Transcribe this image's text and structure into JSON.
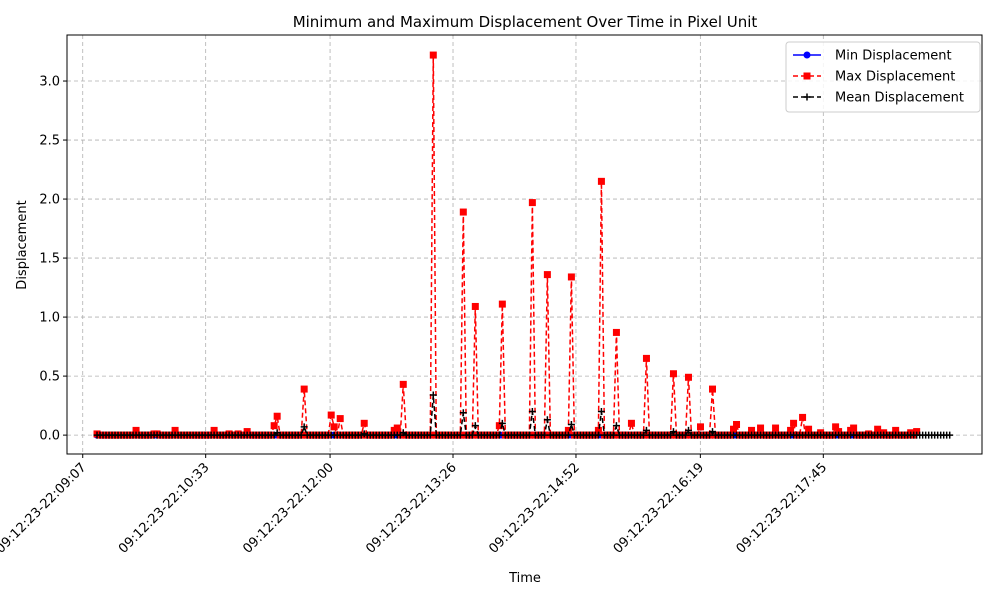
{
  "chart_data": {
    "type": "line",
    "title": "Minimum and Maximum Displacement Over Time in Pixel Unit",
    "xlabel": "Time",
    "ylabel": "Displacement",
    "xlim": [
      -11,
      629
    ],
    "ylim": [
      -0.16,
      3.39
    ],
    "x_ticks": [
      {
        "value": 0,
        "label": "09:12:23-22:09:07"
      },
      {
        "value": 86,
        "label": "09:12:23-22:10:33"
      },
      {
        "value": 173,
        "label": "09:12:23-22:12:00"
      },
      {
        "value": 259,
        "label": "09:12:23-22:13:26"
      },
      {
        "value": 345,
        "label": "09:12:23-22:14:52"
      },
      {
        "value": 432,
        "label": "09:12:23-22:16:19"
      },
      {
        "value": 518,
        "label": "09:12:23-22:17:45"
      }
    ],
    "y_ticks": [
      0.0,
      0.5,
      1.0,
      1.5,
      2.0,
      2.5,
      3.0
    ],
    "y_tick_labels": [
      "0.0",
      "0.5",
      "1.0",
      "1.5",
      "2.0",
      "2.5",
      "3.0"
    ],
    "grid": true,
    "legend_position": "top-right",
    "x_start": 10,
    "x_step": 2.1,
    "series": [
      {
        "name": "Min Displacement",
        "color": "#0000ff",
        "style": "solid",
        "marker": "circle",
        "values": [
          0,
          0,
          0,
          0,
          0,
          0,
          0,
          0,
          0,
          0,
          0,
          0,
          0,
          0,
          0,
          0,
          0,
          0,
          0,
          0,
          0,
          0,
          0,
          0,
          0,
          0,
          0,
          0,
          0,
          0,
          0,
          0,
          0,
          0,
          0,
          0,
          0,
          0,
          0,
          0,
          0,
          0,
          0,
          0,
          0,
          0,
          0,
          0,
          0,
          0,
          0,
          0,
          0,
          0,
          0,
          0,
          0,
          0,
          0,
          0,
          0,
          0,
          0,
          0,
          0,
          0,
          0,
          0,
          0,
          0,
          0,
          0,
          0,
          0,
          0,
          0,
          0,
          0,
          0,
          0,
          0,
          0,
          0,
          0,
          0,
          0,
          0,
          0,
          0,
          0,
          0,
          0,
          0,
          0,
          0,
          0,
          0,
          0,
          0,
          0,
          0,
          0,
          0,
          0,
          0,
          0,
          0,
          0,
          0,
          0,
          0,
          0,
          0,
          0,
          0,
          0,
          0,
          0,
          0,
          0,
          0,
          0,
          0,
          0,
          0,
          0,
          0,
          0,
          0,
          0,
          0,
          0,
          0,
          0,
          0,
          0,
          0,
          0,
          0,
          0,
          0,
          0,
          0,
          0,
          0,
          0,
          0,
          0,
          0,
          0,
          0,
          0,
          0,
          0,
          0,
          0,
          0,
          0,
          0,
          0,
          0,
          0,
          0,
          0,
          0,
          0,
          0,
          0,
          0,
          0,
          0,
          0,
          0,
          0,
          0,
          0,
          0,
          0,
          0,
          0,
          0,
          0,
          0,
          0,
          0,
          0,
          0,
          0,
          0,
          0,
          0,
          0,
          0,
          0,
          0,
          0,
          0,
          0,
          0,
          0,
          0,
          0,
          0,
          0,
          0,
          0,
          0,
          0,
          0,
          0,
          0,
          0,
          0,
          0,
          0,
          0,
          0,
          0,
          0,
          0,
          0,
          0,
          0,
          0,
          0,
          0,
          0,
          0,
          0,
          0,
          0,
          0,
          0,
          0,
          0,
          0,
          0,
          0,
          0,
          0,
          0,
          0,
          0,
          0,
          0,
          0,
          0,
          0,
          0,
          0,
          0,
          0,
          0,
          0,
          0,
          0,
          0,
          0,
          0,
          0,
          0,
          0,
          0,
          0,
          0
        ]
      },
      {
        "name": "Max Displacement",
        "color": "#ff0000",
        "style": "dashed",
        "marker": "square",
        "values": [
          0.01,
          0,
          0,
          0,
          0,
          0,
          0,
          0,
          0,
          0,
          0,
          0,
          0,
          0.04,
          0,
          0,
          0,
          0,
          0,
          0.01,
          0.01,
          0,
          0,
          0,
          0,
          0,
          0.04,
          0,
          0,
          0,
          0,
          0,
          0,
          0,
          0,
          0,
          0,
          0,
          0,
          0.04,
          0,
          0,
          0,
          0,
          0.01,
          0,
          0,
          0.01,
          0,
          0,
          0.03,
          0,
          0,
          0,
          0,
          0,
          0,
          0,
          0,
          0.08,
          0.16,
          0,
          0,
          0,
          0,
          0,
          0,
          0,
          0,
          0.39,
          0,
          0,
          0,
          0,
          0,
          0,
          0,
          0,
          0.17,
          0.07,
          0,
          0.14,
          0,
          0,
          0,
          0,
          0,
          0,
          0,
          0.1,
          0,
          0,
          0,
          0,
          0,
          0,
          0,
          0,
          0,
          0.04,
          0.06,
          0,
          0.43,
          0,
          0,
          0,
          0,
          0,
          0,
          0,
          0,
          0,
          3.22,
          0,
          0,
          0,
          0,
          0,
          0,
          0,
          0,
          0,
          1.89,
          0,
          0,
          0,
          1.09,
          0,
          0,
          0,
          0,
          0,
          0,
          0,
          0.08,
          1.11,
          0,
          0,
          0,
          0,
          0,
          0,
          0,
          0,
          0,
          1.97,
          0,
          0,
          0,
          0,
          1.36,
          0,
          0,
          0,
          0,
          0,
          0,
          0.04,
          1.34,
          0,
          0,
          0,
          0,
          0,
          0,
          0,
          0,
          0.04,
          2.15,
          0,
          0,
          0,
          0,
          0.87,
          0,
          0,
          0,
          0,
          0.1,
          0,
          0,
          0,
          0,
          0.65,
          0,
          0,
          0,
          0,
          0,
          0,
          0,
          0,
          0.52,
          0,
          0,
          0,
          0,
          0.49,
          0,
          0,
          0,
          0.07,
          0,
          0,
          0,
          0.39,
          0,
          0,
          0,
          0,
          0,
          0,
          0.05,
          0.09,
          0,
          0,
          0,
          0,
          0.04,
          0,
          0,
          0.06,
          0,
          0,
          0,
          0,
          0.06,
          0,
          0,
          0,
          0,
          0.04,
          0.1,
          0,
          0,
          0.15,
          0,
          0.05,
          0,
          0,
          0,
          0.02,
          0,
          0,
          0,
          0,
          0.07,
          0.03,
          0,
          0,
          0,
          0.04,
          0.06,
          0,
          0,
          0,
          0,
          0.01,
          0,
          0,
          0.05,
          0,
          0.02,
          0,
          0,
          0,
          0.04,
          0,
          0,
          0,
          0,
          0.02,
          0,
          0.03
        ]
      },
      {
        "name": "Mean Displacement",
        "color": "#000000",
        "style": "dashed",
        "marker": "plus",
        "values": [
          0,
          0,
          0,
          0,
          0,
          0,
          0,
          0,
          0,
          0,
          0,
          0,
          0,
          0,
          0,
          0,
          0,
          0,
          0,
          0,
          0,
          0,
          0,
          0,
          0,
          0,
          0,
          0,
          0,
          0,
          0,
          0,
          0,
          0,
          0,
          0,
          0,
          0,
          0,
          0,
          0,
          0,
          0,
          0,
          0,
          0,
          0,
          0,
          0,
          0,
          0,
          0,
          0,
          0,
          0,
          0,
          0,
          0,
          0,
          0,
          0.02,
          0,
          0,
          0,
          0,
          0,
          0,
          0,
          0,
          0.07,
          0,
          0,
          0,
          0,
          0,
          0,
          0,
          0,
          0,
          0,
          0,
          0,
          0,
          0,
          0,
          0,
          0,
          0,
          0,
          0.01,
          0,
          0,
          0,
          0,
          0,
          0,
          0,
          0,
          0,
          0,
          0,
          0,
          0.02,
          0,
          0,
          0,
          0,
          0,
          0,
          0,
          0,
          0,
          0.34,
          0,
          0,
          0,
          0,
          0,
          0,
          0,
          0,
          0,
          0.19,
          0,
          0,
          0,
          0.08,
          0,
          0,
          0,
          0,
          0,
          0,
          0,
          0,
          0.1,
          0,
          0,
          0,
          0,
          0,
          0,
          0,
          0,
          0,
          0.2,
          0,
          0,
          0,
          0,
          0.13,
          0,
          0,
          0,
          0,
          0,
          0,
          0,
          0.09,
          0,
          0,
          0,
          0,
          0,
          0,
          0,
          0,
          0,
          0.2,
          0,
          0,
          0,
          0,
          0.08,
          0,
          0,
          0,
          0,
          0,
          0,
          0,
          0,
          0,
          0.04,
          0,
          0,
          0,
          0,
          0,
          0,
          0,
          0,
          0.03,
          0,
          0,
          0,
          0,
          0.04,
          0,
          0,
          0,
          0,
          0,
          0,
          0,
          0.03,
          0,
          0,
          0,
          0,
          0,
          0,
          0,
          0,
          0,
          0,
          0,
          0,
          0,
          0,
          0,
          0,
          0,
          0,
          0,
          0,
          0,
          0,
          0,
          0,
          0,
          0,
          0,
          0,
          0,
          0,
          0,
          0,
          0,
          0,
          0,
          0,
          0,
          0,
          0,
          0,
          0,
          0,
          0,
          0,
          0,
          0,
          0,
          0,
          0,
          0,
          0,
          0,
          0,
          0,
          0,
          0,
          0,
          0,
          0,
          0,
          0,
          0,
          0,
          0,
          0,
          0,
          0,
          0,
          0,
          0,
          0,
          0,
          0,
          0,
          0,
          0,
          0,
          0,
          0
        ]
      }
    ]
  }
}
